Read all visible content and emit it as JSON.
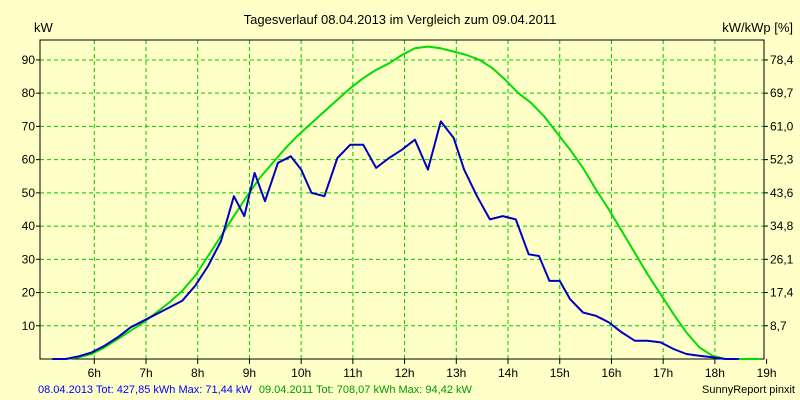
{
  "chart_data": {
    "type": "line",
    "title": "Tagesverlauf 08.04.2013 im Vergleich zum 09.04.2011",
    "ylabel_left": "kW",
    "ylabel_right": "kW/kWp [%]",
    "xlim": [
      4.95,
      18.95
    ],
    "ylim": [
      0,
      96
    ],
    "grid": true,
    "x_ticks": [
      {
        "value": 6,
        "label": "6h"
      },
      {
        "value": 7,
        "label": "7h"
      },
      {
        "value": 8,
        "label": "8h"
      },
      {
        "value": 9,
        "label": "9h"
      },
      {
        "value": 10,
        "label": "10h"
      },
      {
        "value": 11,
        "label": "11h"
      },
      {
        "value": 12,
        "label": "12h"
      },
      {
        "value": 13,
        "label": "13h"
      },
      {
        "value": 14,
        "label": "14h"
      },
      {
        "value": 15,
        "label": "15h"
      },
      {
        "value": 16,
        "label": "16h"
      },
      {
        "value": 17,
        "label": "17h"
      },
      {
        "value": 18,
        "label": "18h"
      },
      {
        "value": 19,
        "label": "19h"
      }
    ],
    "y_ticks_left": [
      10,
      20,
      30,
      40,
      50,
      60,
      70,
      80,
      90
    ],
    "y_ticks_right": [
      "8,7",
      "17,4",
      "26,1",
      "34,8",
      "43,6",
      "52,3",
      "61,0",
      "69,7",
      "78,4"
    ],
    "series": [
      {
        "name": "08.04.2013",
        "color": "#0000c0",
        "x": [
          5.2,
          5.45,
          5.7,
          5.95,
          6.2,
          6.45,
          6.7,
          6.95,
          7.2,
          7.45,
          7.7,
          7.95,
          8.2,
          8.45,
          8.7,
          8.9,
          9.1,
          9.3,
          9.55,
          9.8,
          10.0,
          10.2,
          10.45,
          10.7,
          10.95,
          11.2,
          11.45,
          11.7,
          11.95,
          12.2,
          12.45,
          12.7,
          12.95,
          13.15,
          13.4,
          13.65,
          13.9,
          14.15,
          14.4,
          14.6,
          14.8,
          15.0,
          15.2,
          15.45,
          15.7,
          15.95,
          16.2,
          16.45,
          16.7,
          16.95,
          17.2,
          17.45,
          17.7,
          17.95,
          18.2,
          18.35,
          18.45
        ],
        "y": [
          0,
          0,
          0.8,
          2,
          4,
          6.5,
          9.5,
          11.5,
          13.5,
          15.5,
          17.5,
          22,
          28,
          35.5,
          49,
          43,
          56,
          47.5,
          59,
          61,
          57,
          50,
          49,
          60.5,
          64.5,
          64.5,
          57.5,
          60.5,
          63,
          66,
          57,
          71.5,
          66.5,
          57,
          49,
          42,
          43,
          42,
          31.5,
          31,
          23.5,
          23.5,
          18,
          14,
          13,
          11,
          8,
          5.5,
          5.5,
          5,
          3,
          1.5,
          1,
          0.5,
          0,
          0,
          0
        ]
      },
      {
        "name": "09.04.2011",
        "color": "#00dd00",
        "x": [
          5.2,
          5.45,
          5.7,
          5.95,
          6.2,
          6.45,
          6.7,
          6.95,
          7.2,
          7.45,
          7.7,
          7.95,
          8.2,
          8.45,
          8.7,
          8.95,
          9.2,
          9.45,
          9.7,
          9.95,
          10.2,
          10.45,
          10.7,
          10.95,
          11.2,
          11.45,
          11.7,
          11.95,
          12.2,
          12.45,
          12.7,
          12.95,
          13.2,
          13.45,
          13.7,
          13.95,
          14.2,
          14.45,
          14.7,
          14.95,
          15.2,
          15.45,
          15.7,
          15.95,
          16.2,
          16.45,
          16.7,
          16.95,
          17.2,
          17.45,
          17.7,
          17.95,
          18.2,
          18.4,
          18.55,
          18.7,
          18.85
        ],
        "y": [
          0,
          0,
          0.5,
          1.5,
          3.5,
          6,
          8.5,
          11,
          14,
          17,
          20.5,
          25,
          31,
          37,
          43,
          49,
          54.5,
          59,
          63.5,
          67.5,
          71,
          74.5,
          78,
          81.5,
          84.5,
          87,
          89,
          91.5,
          93.5,
          94,
          93.5,
          92.5,
          91.5,
          90,
          87.5,
          84,
          80,
          77,
          73,
          68,
          63,
          57.5,
          51,
          45,
          38.5,
          32,
          25.5,
          19.5,
          13.5,
          8,
          3.5,
          1,
          0,
          0,
          0,
          0,
          0
        ]
      }
    ]
  },
  "footer": {
    "blue_text": "08.04.2013 Tot: 427,85 kWh Max: 71,44 kW",
    "green_text": "09.04.2011 Tot: 708,07 kWh Max: 94,42 kW",
    "credit": "SunnyReport pinxit"
  },
  "colors": {
    "background": "#ffffc8",
    "grid": "#00c800",
    "footer_blue": "#0000ff",
    "footer_green": "#009900"
  }
}
